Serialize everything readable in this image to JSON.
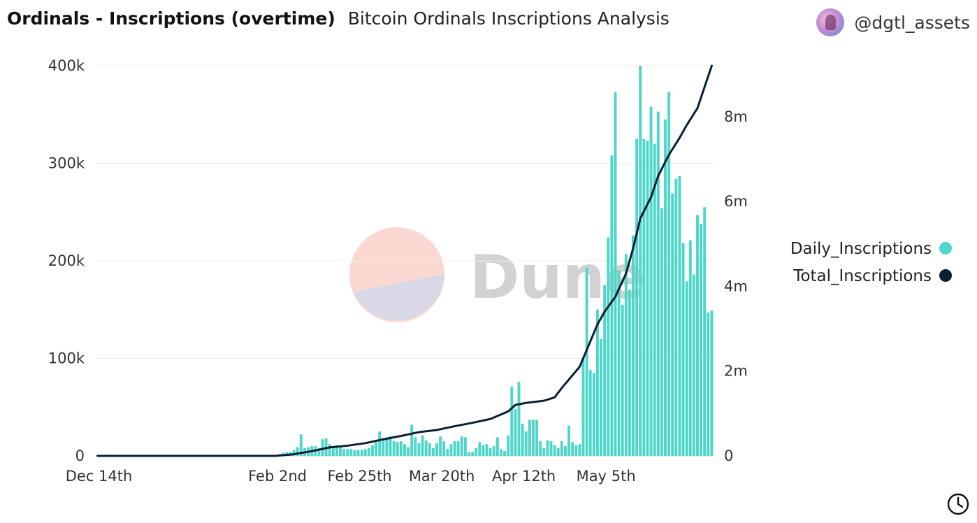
{
  "header": {
    "title": "Ordinals - Inscriptions (overtime)",
    "subtitle": "Bitcoin Ordinals Inscriptions Analysis"
  },
  "author": {
    "handle": "@dgtl_assets",
    "avatar_icon": "avatar-icon"
  },
  "watermark": {
    "text": "Dune"
  },
  "footer": {
    "icon": "clock-icon"
  },
  "colors": {
    "bar": "#4dd6c9",
    "line": "#0b1e33",
    "grid": "#ececec"
  },
  "chart_data": {
    "type": "bar+line",
    "title": "Ordinals - Inscriptions (overtime)",
    "subtitle": "Bitcoin Ordinals Inscriptions Analysis",
    "x_tick_labels": [
      "Dec 14th",
      "Feb 2nd",
      "Feb 25th",
      "Mar 20th",
      "Apr 12th",
      "May 5th"
    ],
    "x_tick_day_index": [
      0,
      50,
      73,
      96,
      119,
      142
    ],
    "y_left": {
      "ticks": [
        0,
        100000,
        200000,
        300000,
        400000
      ],
      "tick_labels": [
        "0",
        "100k",
        "200k",
        "300k",
        "400k"
      ],
      "range": [
        0,
        400000
      ]
    },
    "y_right": {
      "ticks": [
        0,
        2000000,
        4000000,
        6000000,
        8000000
      ],
      "tick_labels": [
        "0",
        "2m",
        "4m",
        "6m",
        "8m"
      ],
      "range": [
        0,
        9200000
      ]
    },
    "legend": [
      {
        "name": "Daily_Inscriptions",
        "color": "#4dd6c9"
      },
      {
        "name": "Total_Inscriptions",
        "color": "#0b1e33"
      }
    ],
    "series": [
      {
        "name": "Daily_Inscriptions",
        "axis": "left",
        "type": "bar",
        "start_day_index": 0,
        "values": [
          0,
          0,
          0,
          0,
          0,
          0,
          0,
          0,
          0,
          0,
          0,
          0,
          0,
          0,
          0,
          0,
          0,
          0,
          0,
          0,
          0,
          0,
          0,
          0,
          0,
          0,
          0,
          0,
          0,
          0,
          0,
          0,
          0,
          0,
          0,
          0,
          0,
          0,
          0,
          0,
          0,
          0,
          0,
          0,
          0,
          0,
          0,
          0,
          0,
          0,
          0,
          2000,
          3000,
          4000,
          4000,
          6000,
          9000,
          22000,
          8000,
          9000,
          10000,
          10000,
          8000,
          17000,
          18000,
          12000,
          9000,
          11000,
          10000,
          7000,
          7000,
          7000,
          6000,
          6000,
          6000,
          7000,
          8000,
          11000,
          14000,
          25000,
          17000,
          19000,
          20000,
          15000,
          14000,
          15000,
          12000,
          9000,
          32000,
          19000,
          13000,
          21000,
          16000,
          13000,
          8000,
          13000,
          20000,
          15000,
          7000,
          12000,
          15000,
          15000,
          20000,
          19000,
          4000,
          4000,
          8000,
          14000,
          11000,
          12000,
          8000,
          10000,
          19000,
          7000,
          5000,
          21000,
          71000,
          48000,
          76000,
          33000,
          25000,
          37000,
          37000,
          37000,
          15000,
          8000,
          16000,
          15000,
          11000,
          8000,
          15000,
          10000,
          31000,
          14000,
          11000,
          12000,
          100000,
          193000,
          88000,
          85000,
          150000,
          120000,
          175000,
          224000,
          308000,
          373000,
          190000,
          155000,
          207000,
          170000,
          226000,
          325000,
          400000,
          325000,
          323000,
          358000,
          320000,
          353000,
          254000,
          345000,
          373000,
          269000,
          284000,
          287000,
          218000,
          179000,
          221000,
          186000,
          247000,
          238000,
          255000,
          147000,
          149000
        ]
      },
      {
        "name": "Total_Inscriptions",
        "axis": "right",
        "type": "line",
        "x_day_index": [
          0,
          50,
          55,
          60,
          65,
          70,
          75,
          80,
          85,
          90,
          95,
          100,
          105,
          110,
          115,
          117,
          120,
          125,
          128,
          130,
          132,
          135,
          138,
          140,
          142,
          145,
          148,
          150,
          152,
          155,
          157,
          160,
          163,
          165,
          168,
          170,
          172
        ],
        "values": [
          0,
          0,
          40000,
          110000,
          200000,
          240000,
          300000,
          390000,
          470000,
          560000,
          610000,
          700000,
          780000,
          870000,
          1050000,
          1200000,
          1250000,
          1300000,
          1380000,
          1600000,
          1800000,
          2100000,
          2700000,
          3100000,
          3400000,
          3750000,
          4300000,
          4900000,
          5600000,
          6100000,
          6600000,
          7100000,
          7500000,
          7800000,
          8200000,
          8700000,
          9200000
        ]
      }
    ]
  }
}
